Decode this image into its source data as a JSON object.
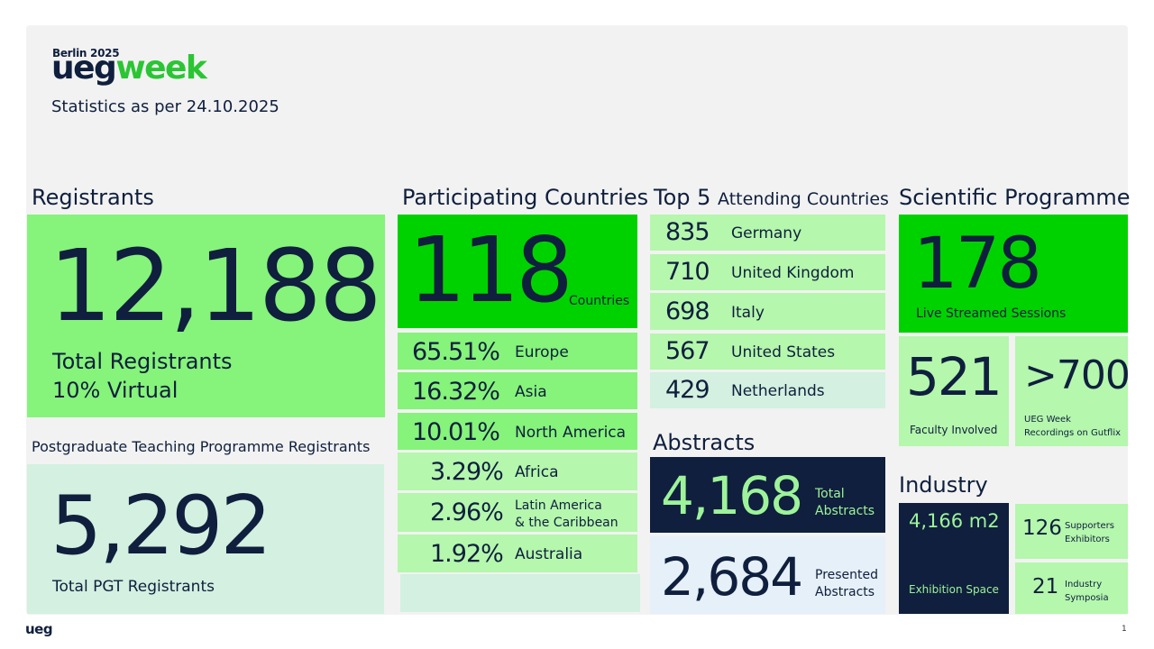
{
  "header": {
    "city_year": "Berlin 2025",
    "logo_ueg": "ueg",
    "logo_week": "week",
    "stats_date": "Statistics as per 24.10.2025"
  },
  "registrants": {
    "heading": "Registrants",
    "total": "12,188",
    "total_label": "Total Registrants",
    "virtual_label": "10% Virtual"
  },
  "pgt": {
    "heading": "Postgraduate Teaching Programme Registrants",
    "total": "5,292",
    "label": "Total PGT Registrants"
  },
  "countries": {
    "heading": "Participating Countries",
    "count": "118",
    "count_label": "Countries",
    "regions": [
      {
        "pct": "65.51%",
        "name": "Europe"
      },
      {
        "pct": "16.32%",
        "name": "Asia"
      },
      {
        "pct": "10.01%",
        "name": "North America"
      },
      {
        "pct": "3.29%",
        "name": "Africa"
      },
      {
        "pct": "2.96%",
        "name_line1": "Latin America",
        "name_line2": "& the Caribbean"
      },
      {
        "pct": "1.92%",
        "name": "Australia"
      }
    ]
  },
  "top5": {
    "heading_main": "Top 5",
    "heading_rest": "Attending Countries",
    "items": [
      {
        "count": "835",
        "country": "Germany"
      },
      {
        "count": "710",
        "country": "United Kingdom"
      },
      {
        "count": "698",
        "country": "Italy"
      },
      {
        "count": "567",
        "country": "United States"
      },
      {
        "count": "429",
        "country": "Netherlands"
      }
    ]
  },
  "abstracts": {
    "heading": "Abstracts",
    "total": "4,168",
    "total_label1": "Total",
    "total_label2": "Abstracts",
    "presented": "2,684",
    "presented_label1": "Presented",
    "presented_label2": "Abstracts"
  },
  "scientific": {
    "heading": "Scientific Programme",
    "sessions": "178",
    "sessions_label": "Live Streamed Sessions",
    "faculty": "521",
    "faculty_label": "Faculty Involved",
    "recordings": ">700",
    "recordings_label1": "UEG Week",
    "recordings_label2": "Recordings on Gutflix"
  },
  "industry": {
    "heading": "Industry",
    "space": "4,166 m2",
    "space_label": "Exhibition Space",
    "supporters": "126",
    "supporters_label1": "Supporters",
    "supporters_label2": "Exhibitors",
    "symposia": "21",
    "symposia_label1": "Industry",
    "symposia_label2": "Symposia"
  },
  "footer": {
    "logo": "ueg",
    "page": "1"
  },
  "colors": {
    "navy": "#0f1f3d",
    "bright_green": "#00d200",
    "mid_green": "#86f37a",
    "light_green": "#b5f7ad",
    "pale_green": "#d3f0e0",
    "pale_blue": "#e6f0f8",
    "panel_grey": "#f2f2f2"
  }
}
